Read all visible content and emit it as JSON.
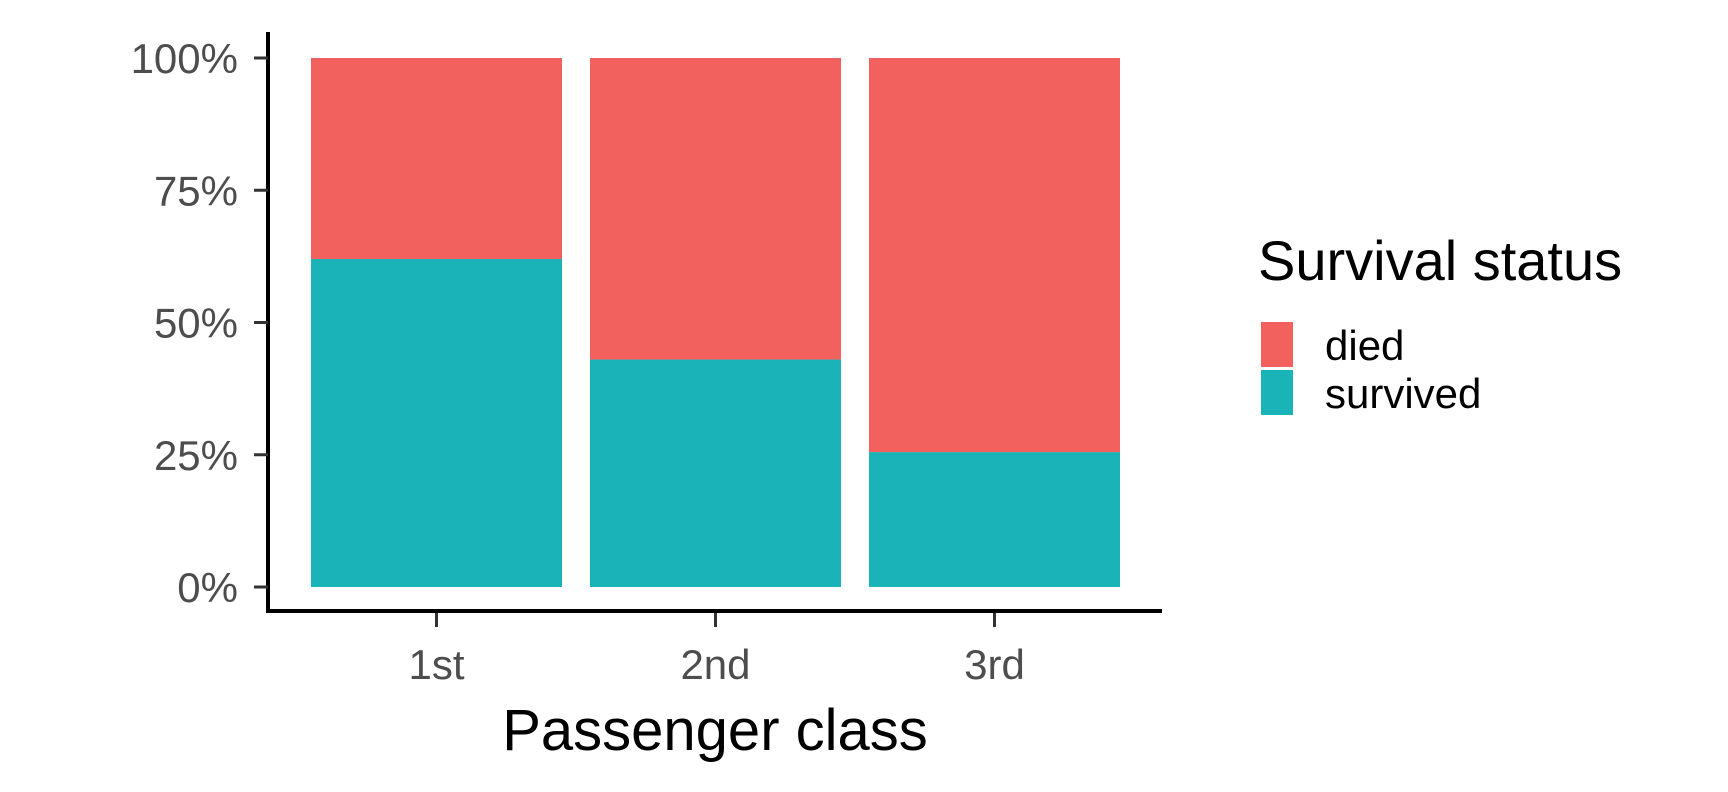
{
  "chart_data": {
    "type": "bar",
    "stacked": true,
    "normalized": true,
    "categories": [
      "1st",
      "2nd",
      "3rd"
    ],
    "series": [
      {
        "name": "survived",
        "values": [
          0.62,
          0.43,
          0.255
        ],
        "color": "#1AB3B8"
      },
      {
        "name": "died",
        "values": [
          0.38,
          0.57,
          0.745
        ],
        "color": "#F2615E"
      }
    ],
    "y_ticks": [
      {
        "value": 0,
        "label": "0%"
      },
      {
        "value": 0.25,
        "label": "25%"
      },
      {
        "value": 0.5,
        "label": "50%"
      },
      {
        "value": 0.75,
        "label": "75%"
      },
      {
        "value": 1,
        "label": "100%"
      }
    ],
    "ylim": [
      0,
      1
    ],
    "xlabel": "Passenger class",
    "ylabel": "",
    "legend": {
      "title": "Survival status",
      "position": "right",
      "entries": [
        {
          "label": "died",
          "color": "#F2615E"
        },
        {
          "label": "survived",
          "color": "#1AB3B8"
        }
      ]
    },
    "grid": false
  }
}
